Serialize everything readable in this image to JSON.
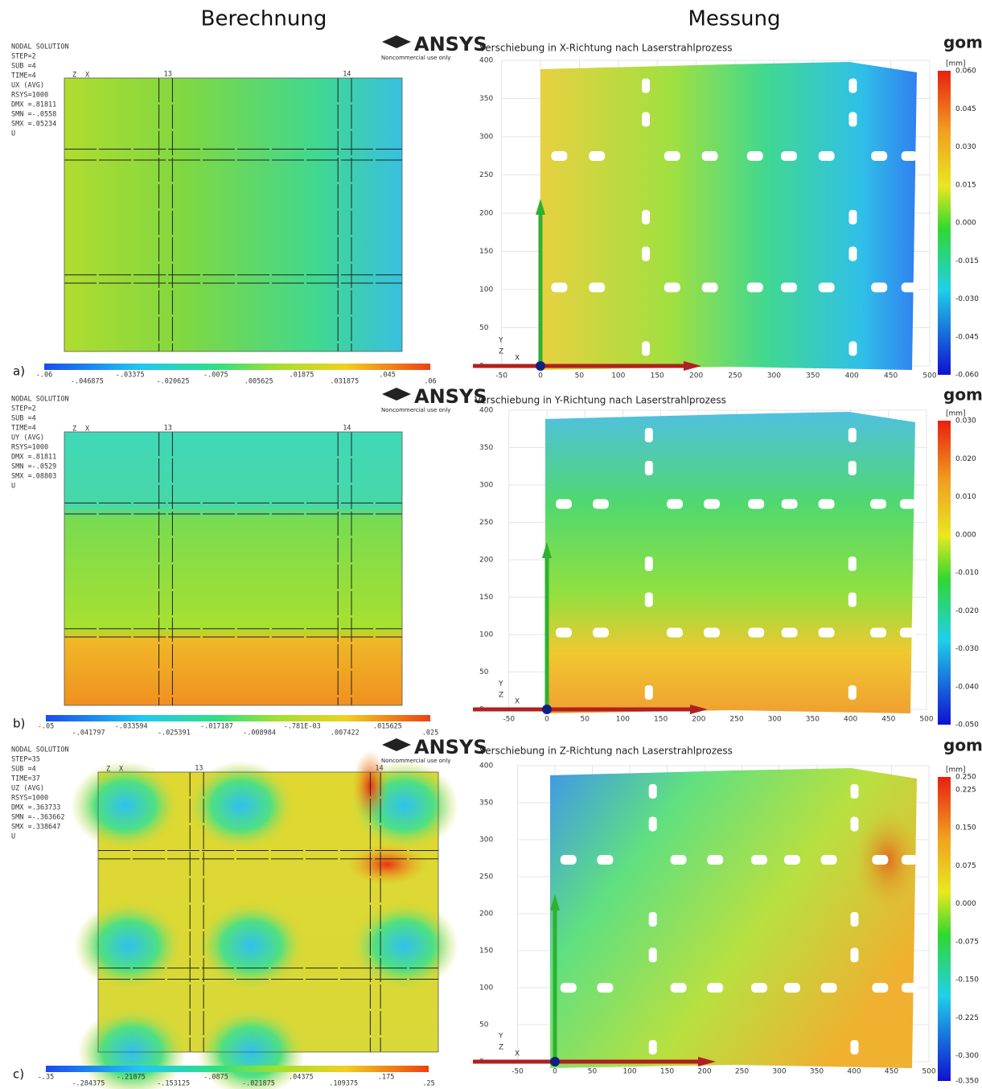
{
  "headers": {
    "left": "Berechnung",
    "right": "Messung"
  },
  "panels": [
    {
      "label": "a)",
      "ansys": {
        "logo": "ANSYS",
        "license": "Noncommercial use only",
        "info": [
          "NODAL SOLUTION",
          "STEP=2",
          "SUB =4",
          "TIME=4",
          "UX      (AVG)",
          "RSYS=1000",
          "DMX =.81811",
          "SMN =-.0558",
          "SMX =.05234",
          "U"
        ],
        "axis": [
          "Z",
          "X"
        ],
        "nodes": [
          "13",
          "14"
        ],
        "scale_top": [
          "-.06",
          "-.03375",
          "-.0075",
          ".01875",
          ".045"
        ],
        "scale_bottom": [
          "-.046875",
          "-.020625",
          ".005625",
          ".031875",
          ".06"
        ]
      },
      "gom": {
        "logo": "gom",
        "title": "Verschiebung in X-Richtung nach Laserstrahlprozess",
        "unit": "[mm]",
        "axis": [
          "Y",
          "Z",
          "X"
        ],
        "xticks": [
          "-50",
          "0",
          "50",
          "100",
          "150",
          "200",
          "250",
          "300",
          "350",
          "400",
          "450",
          "500"
        ],
        "yticks": [
          "400",
          "350",
          "300",
          "250",
          "200",
          "150",
          "100",
          "50",
          "0"
        ],
        "colorbar": [
          "0.060",
          "0.045",
          "0.030",
          "0.015",
          "0.000",
          "-0.015",
          "-0.030",
          "-0.045",
          "-0.060"
        ]
      }
    },
    {
      "label": "b)",
      "ansys": {
        "logo": "ANSYS",
        "license": "Noncommercial use only",
        "info": [
          "NODAL SOLUTION",
          "STEP=2",
          "SUB =4",
          "TIME=4",
          "UY      (AVG)",
          "RSYS=1000",
          "DMX =.81811",
          "SMN =-.0529",
          "SMX =.08803",
          "U"
        ],
        "axis": [
          "Z",
          "X"
        ],
        "nodes": [
          "13",
          "14"
        ],
        "scale_top": [
          "-.05",
          "-.033594",
          "-.017187",
          "-.781E-03",
          ".015625"
        ],
        "scale_bottom": [
          "-.041797",
          "-.025391",
          "-.008984",
          ".007422",
          ".025"
        ]
      },
      "gom": {
        "logo": "gom",
        "title": "Verschiebung in Y-Richtung nach Laserstrahlprozess",
        "unit": "[mm]",
        "axis": [
          "Y",
          "Z",
          "X"
        ],
        "xticks": [
          "-50",
          "0",
          "50",
          "100",
          "150",
          "200",
          "250",
          "300",
          "350",
          "400",
          "450",
          "500"
        ],
        "yticks": [
          "400",
          "350",
          "300",
          "250",
          "200",
          "150",
          "100",
          "50",
          "0"
        ],
        "colorbar": [
          "0.030",
          "0.020",
          "0.010",
          "0.000",
          "-0.010",
          "-0.020",
          "-0.030",
          "-0.040",
          "-0.050"
        ]
      }
    },
    {
      "label": "c)",
      "ansys": {
        "logo": "ANSYS",
        "license": "Noncommercial use only",
        "info": [
          "NODAL SOLUTION",
          "STEP=35",
          "SUB =4",
          "TIME=37",
          "UZ      (AVG)",
          "RSYS=1000",
          "DMX =.363733",
          "SMN =-.363662",
          "SMX =.338647",
          "U"
        ],
        "axis": [
          "Z",
          "X"
        ],
        "nodes": [
          "13",
          "14"
        ],
        "scale_top": [
          "-.35",
          "-.21875",
          "-.0875",
          ".04375",
          ".175"
        ],
        "scale_bottom": [
          "-.284375",
          "-.153125",
          "-.021875",
          ".109375",
          ".25"
        ]
      },
      "gom": {
        "logo": "gom",
        "title": "Verschiebung in Z-Richtung nach Laserstrahlprozess",
        "unit": "[mm]",
        "axis": [
          "Y",
          "Z",
          "X"
        ],
        "xticks": [
          "-50",
          "0",
          "50",
          "100",
          "150",
          "200",
          "250",
          "300",
          "350",
          "400",
          "450",
          "500"
        ],
        "yticks": [
          "400",
          "350",
          "300",
          "250",
          "200",
          "150",
          "100",
          "50",
          "0"
        ],
        "colorbar": [
          "0.250",
          "0.225",
          "0.150",
          "0.075",
          "0.000",
          "-0.075",
          "-0.150",
          "-0.225",
          "-0.300",
          "-0.350"
        ]
      }
    }
  ]
}
